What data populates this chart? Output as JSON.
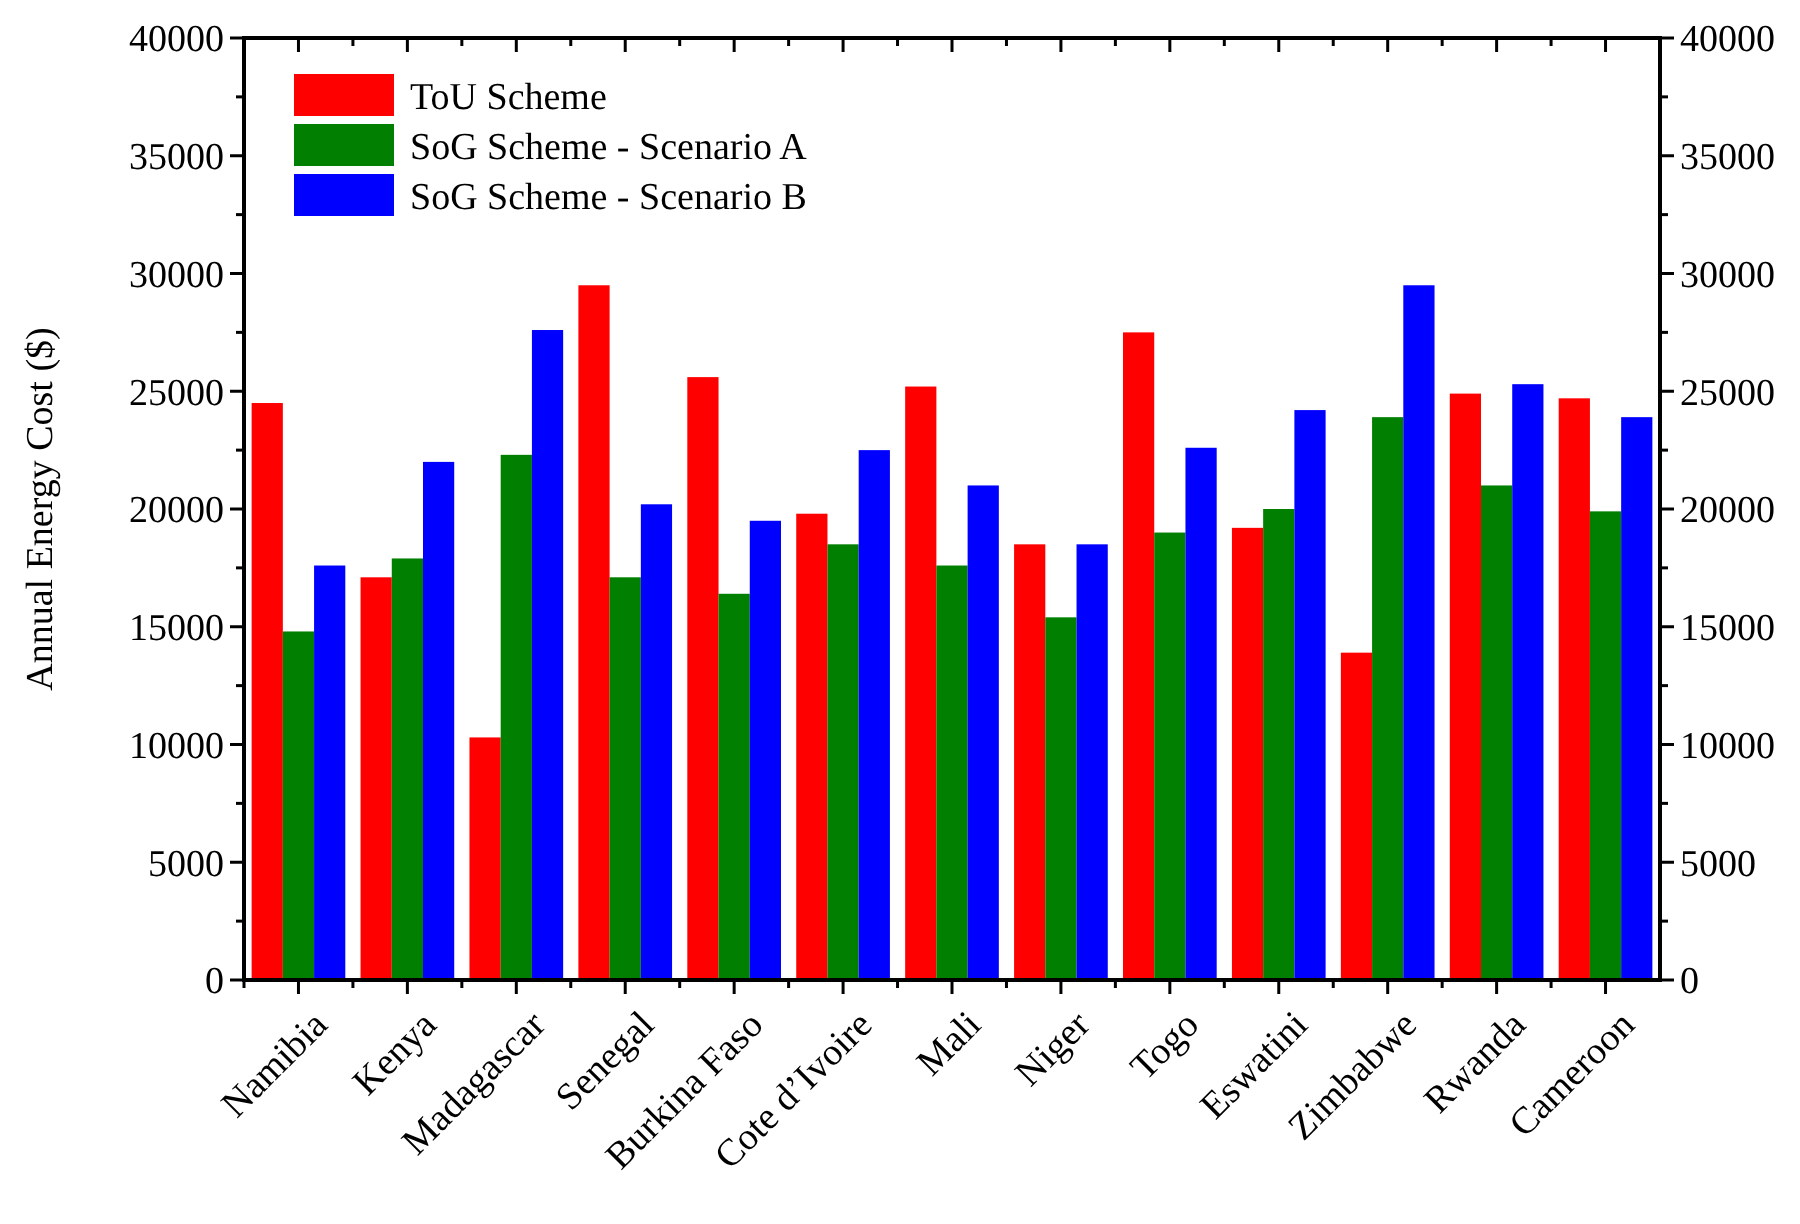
{
  "chart_data": {
    "type": "bar",
    "ylabel": "Annual Energy Cost ($)",
    "categories": [
      "Namibia",
      "Kenya",
      "Madagascar",
      "Senegal",
      "Burkina Faso",
      "Cote d’Ivoire",
      "Mali",
      "Niger",
      "Togo",
      "Eswatini",
      "Zimbabwe",
      "Rwanda",
      "Cameroon"
    ],
    "series": [
      {
        "name": "ToU Scheme",
        "color": "#ff0000",
        "values": [
          24500,
          17100,
          10300,
          29500,
          25600,
          19800,
          25200,
          18500,
          27500,
          19200,
          13900,
          24900,
          24700
        ]
      },
      {
        "name": "SoG Scheme - Scenario A",
        "color": "#007f00",
        "values": [
          14800,
          17900,
          22300,
          17100,
          16400,
          18500,
          17600,
          15400,
          19000,
          20000,
          23900,
          21000,
          19900
        ]
      },
      {
        "name": "SoG Scheme - Scenario B",
        "color": "#0000ff",
        "values": [
          17600,
          22000,
          27600,
          20200,
          19500,
          22500,
          21000,
          18500,
          22600,
          24200,
          29500,
          25300,
          23900
        ]
      }
    ],
    "ylim": [
      0,
      40000
    ],
    "yticks": [
      0,
      {
        "value": 2500,
        "label": null
      },
      5000,
      {
        "value": 7500,
        "label": null
      },
      10000,
      {
        "value": 12500,
        "label": null
      },
      15000,
      {
        "value": 17500,
        "label": null
      },
      20000,
      {
        "value": 22500,
        "label": null
      },
      25000,
      {
        "value": 27500,
        "label": null
      },
      30000,
      {
        "value": 32500,
        "label": null
      },
      35000,
      {
        "value": 37500,
        "label": null
      },
      40000
    ],
    "y2lim": [
      0,
      40000
    ],
    "y2ticks": [
      0,
      {
        "value": 2500,
        "label": null
      },
      5000,
      {
        "value": 7500,
        "label": null
      },
      10000,
      {
        "value": 12500,
        "label": null
      },
      15000,
      {
        "value": 17500,
        "label": null
      },
      20000,
      {
        "value": 22500,
        "label": null
      },
      25000,
      {
        "value": 27500,
        "label": null
      },
      30000,
      {
        "value": 32500,
        "label": null
      },
      35000,
      {
        "value": 37500,
        "label": null
      },
      40000
    ],
    "grid": false,
    "legend": "top left"
  }
}
